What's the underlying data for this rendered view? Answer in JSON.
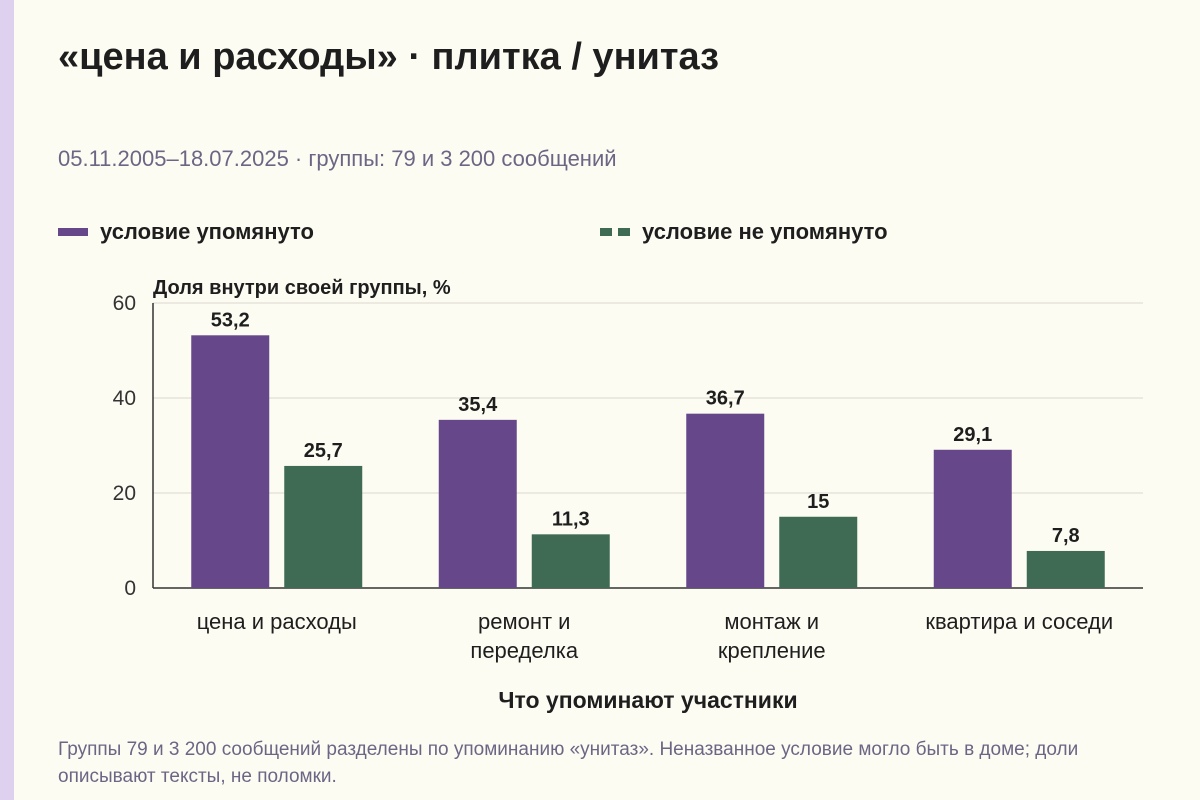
{
  "header": {
    "title": "«цена и расходы» · плитка / унитаз",
    "subtitle": "05.11.2005–18.07.2025 · группы: 79 и 3 200 сообщений"
  },
  "colors": {
    "series_1": "#66478a",
    "series_2": "#3f6b55",
    "gridline": "#d9d6cc",
    "axis": "#333333",
    "text": "#1e1e1e",
    "muted": "#6c6685"
  },
  "chart_data": {
    "type": "bar",
    "ylabel": "Доля внутри своей группы, %",
    "xlabel": "Что упоминают участники",
    "ylim": [
      0,
      60
    ],
    "yticks": [
      0,
      20,
      40,
      60
    ],
    "grid": true,
    "legend_position": "top",
    "categories": [
      [
        "цена и расходы"
      ],
      [
        "ремонт и",
        "переделка"
      ],
      [
        "монтаж и",
        "крепление"
      ],
      [
        "квартира и соседи"
      ]
    ],
    "series": [
      {
        "name": "условие упомянуто",
        "values": [
          53.2,
          35.4,
          36.7,
          29.1
        ],
        "labels": [
          "53,2",
          "35,4",
          "36,7",
          "29,1"
        ]
      },
      {
        "name": "условие не упомянуто",
        "values": [
          25.7,
          11.3,
          15,
          7.8
        ],
        "labels": [
          "25,7",
          "11,3",
          "15",
          "7,8"
        ]
      }
    ]
  },
  "footnote": "Группы 79 и 3 200 сообщений разделены по упоминанию «унитаз». Неназванное условие могло быть в доме; доли описывают тексты, не поломки."
}
